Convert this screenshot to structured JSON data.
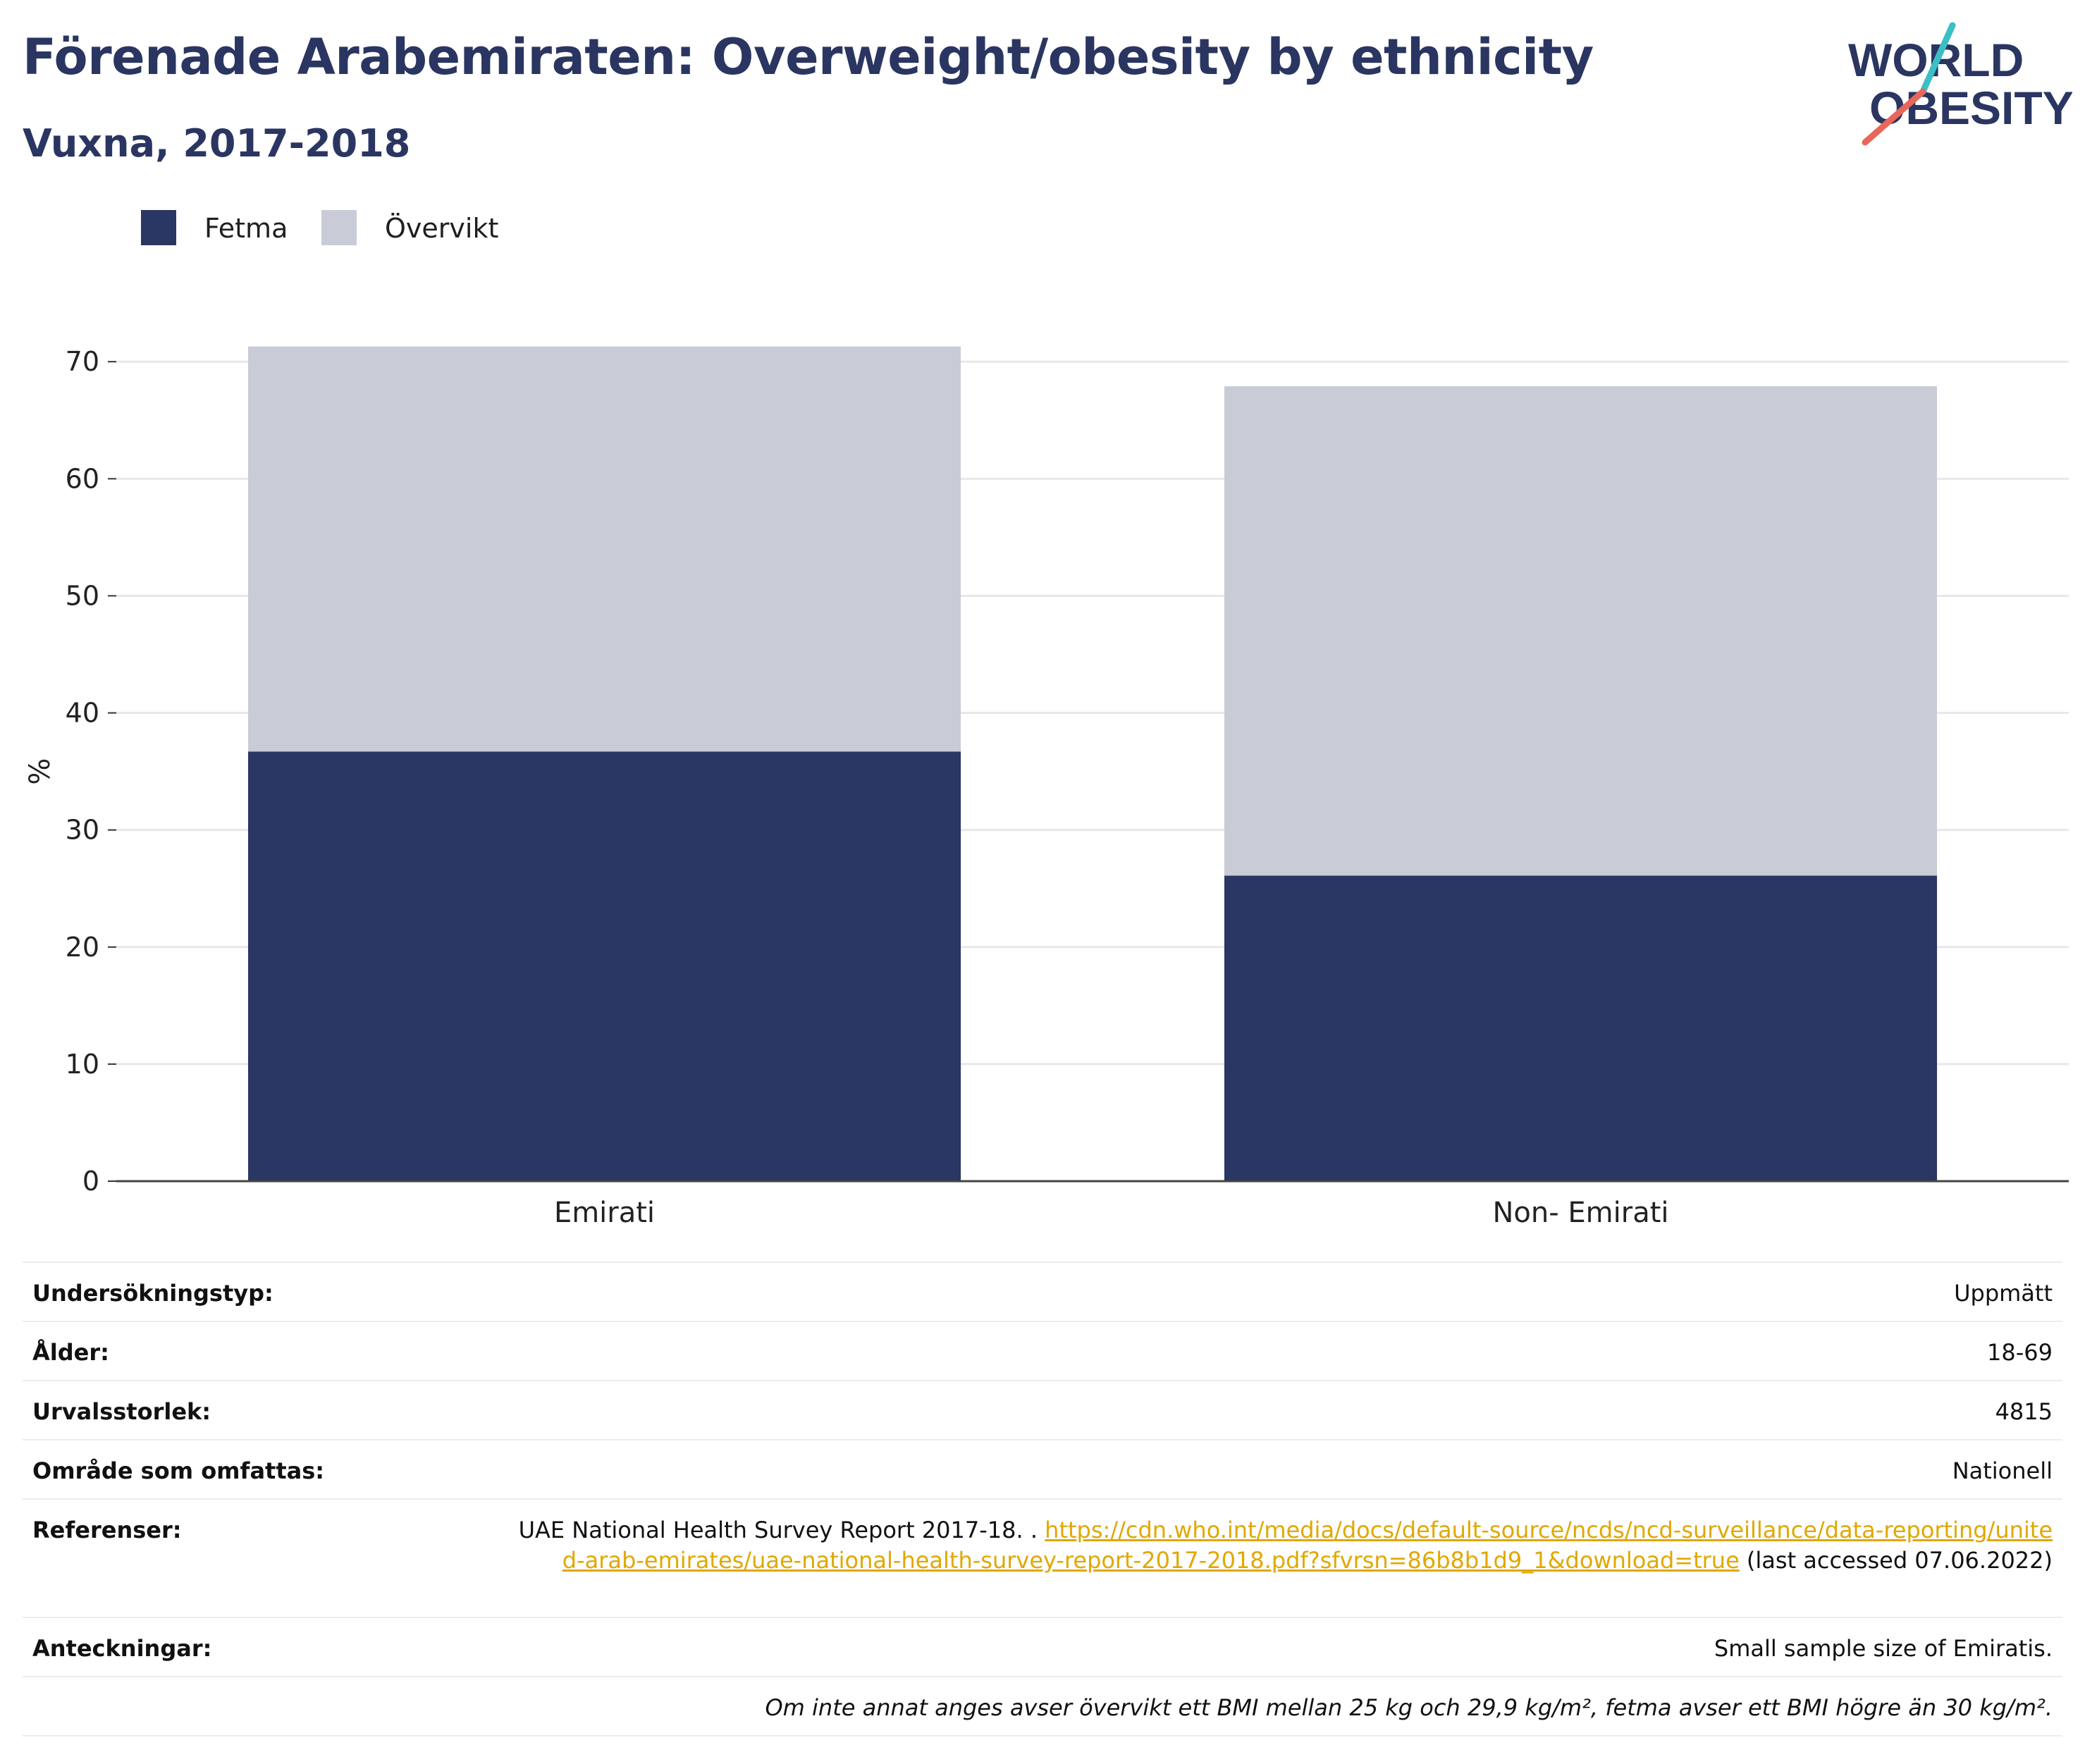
{
  "header": {
    "title": "Förenade Arabemiraten: Overweight/obesity by ethnicity",
    "subtitle": "Vuxna, 2017-2018"
  },
  "logo": {
    "line1": "WORLD",
    "line2": "OBESITY"
  },
  "colors": {
    "fetma": "#2a3663",
    "overvikt": "#c9cbd6",
    "accent": "#2a3561",
    "link": "#e0a800"
  },
  "chart_data": {
    "type": "bar",
    "stacked": true,
    "categories": [
      "Emirati",
      "Non- Emirati"
    ],
    "series": [
      {
        "name": "Fetma",
        "values": [
          36.7,
          26.1
        ]
      },
      {
        "name": "Övervikt",
        "values": [
          34.6,
          41.8
        ]
      }
    ],
    "ylabel": "%",
    "ylim": [
      0,
      72
    ],
    "yticks": [
      0,
      10,
      20,
      30,
      40,
      50,
      60,
      70
    ],
    "grid": true,
    "legend": "top-left"
  },
  "info": {
    "survey_type_label": "Undersökningstyp:",
    "survey_type_value": "Uppmätt",
    "age_label": "Ålder:",
    "age_value": "18-69",
    "sample_label": "Urvalsstorlek:",
    "sample_value": "4815",
    "area_label": "Område som omfattas:",
    "area_value": "Nationell",
    "refs_label": "Referenser:",
    "refs_text": "UAE National Health Survey Report 2017-18. . ",
    "refs_link": "https://cdn.who.int/media/docs/default-source/ncds/ncd-surveillance/data-reporting/united-arab-emirates/uae-national-health-survey-report-2017-2018.pdf?sfvrsn=86b8b1d9_1&download=true",
    "refs_suffix": " (last accessed 07.06.2022)",
    "notes_label": "Anteckningar:",
    "notes_value": "Small sample size of Emiratis.",
    "footnote": "Om inte annat anges avser övervikt ett BMI mellan 25 kg och 29,9 kg/m², fetma avser ett BMI högre än 30 kg/m²."
  }
}
